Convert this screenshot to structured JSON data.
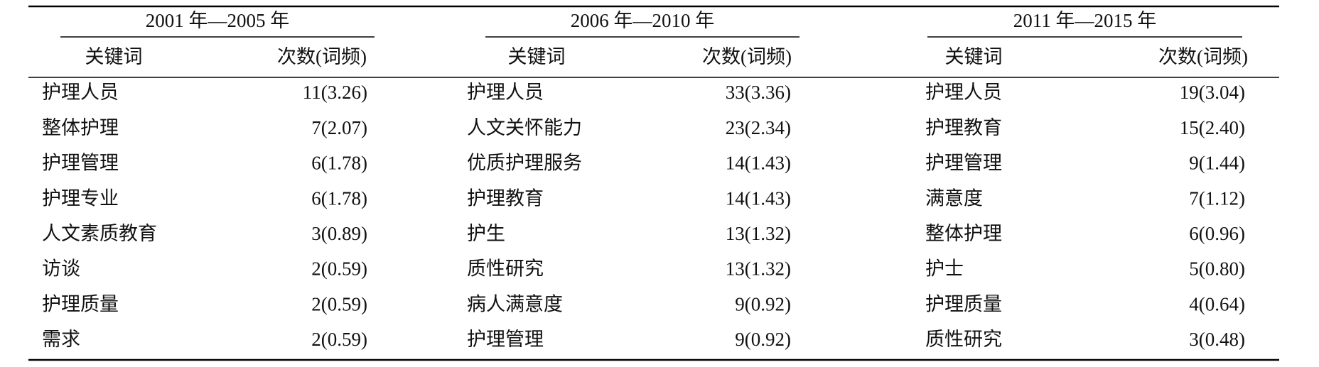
{
  "groups": [
    {
      "title": "2001 年—2005 年",
      "headers": [
        "关键词",
        "次数(词频)"
      ],
      "rows": [
        [
          "护理人员",
          "11(3.26)"
        ],
        [
          "整体护理",
          "7(2.07)"
        ],
        [
          "护理管理",
          "6(1.78)"
        ],
        [
          "护理专业",
          "6(1.78)"
        ],
        [
          "人文素质教育",
          "3(0.89)"
        ],
        [
          "访谈",
          "2(0.59)"
        ],
        [
          "护理质量",
          "2(0.59)"
        ],
        [
          "需求",
          "2(0.59)"
        ]
      ]
    },
    {
      "title": "2006 年—2010 年",
      "headers": [
        "关键词",
        "次数(词频)"
      ],
      "rows": [
        [
          "护理人员",
          "33(3.36)"
        ],
        [
          "人文关怀能力",
          "23(2.34)"
        ],
        [
          "优质护理服务",
          "14(1.43)"
        ],
        [
          "护理教育",
          "14(1.43)"
        ],
        [
          "护生",
          "13(1.32)"
        ],
        [
          "质性研究",
          "13(1.32)"
        ],
        [
          "病人满意度",
          "9(0.92)"
        ],
        [
          "护理管理",
          "9(0.92)"
        ]
      ]
    },
    {
      "title": "2011 年—2015 年",
      "headers": [
        "关键词",
        "次数(词频)"
      ],
      "rows": [
        [
          "护理人员",
          "19(3.04)"
        ],
        [
          "护理教育",
          "15(2.40)"
        ],
        [
          "护理管理",
          "9(1.44)"
        ],
        [
          "满意度",
          "7(1.12)"
        ],
        [
          "整体护理",
          "6(0.96)"
        ],
        [
          "护士",
          "5(0.80)"
        ],
        [
          "护理质量",
          "4(0.64)"
        ],
        [
          "质性研究",
          "3(0.48)"
        ]
      ]
    }
  ]
}
